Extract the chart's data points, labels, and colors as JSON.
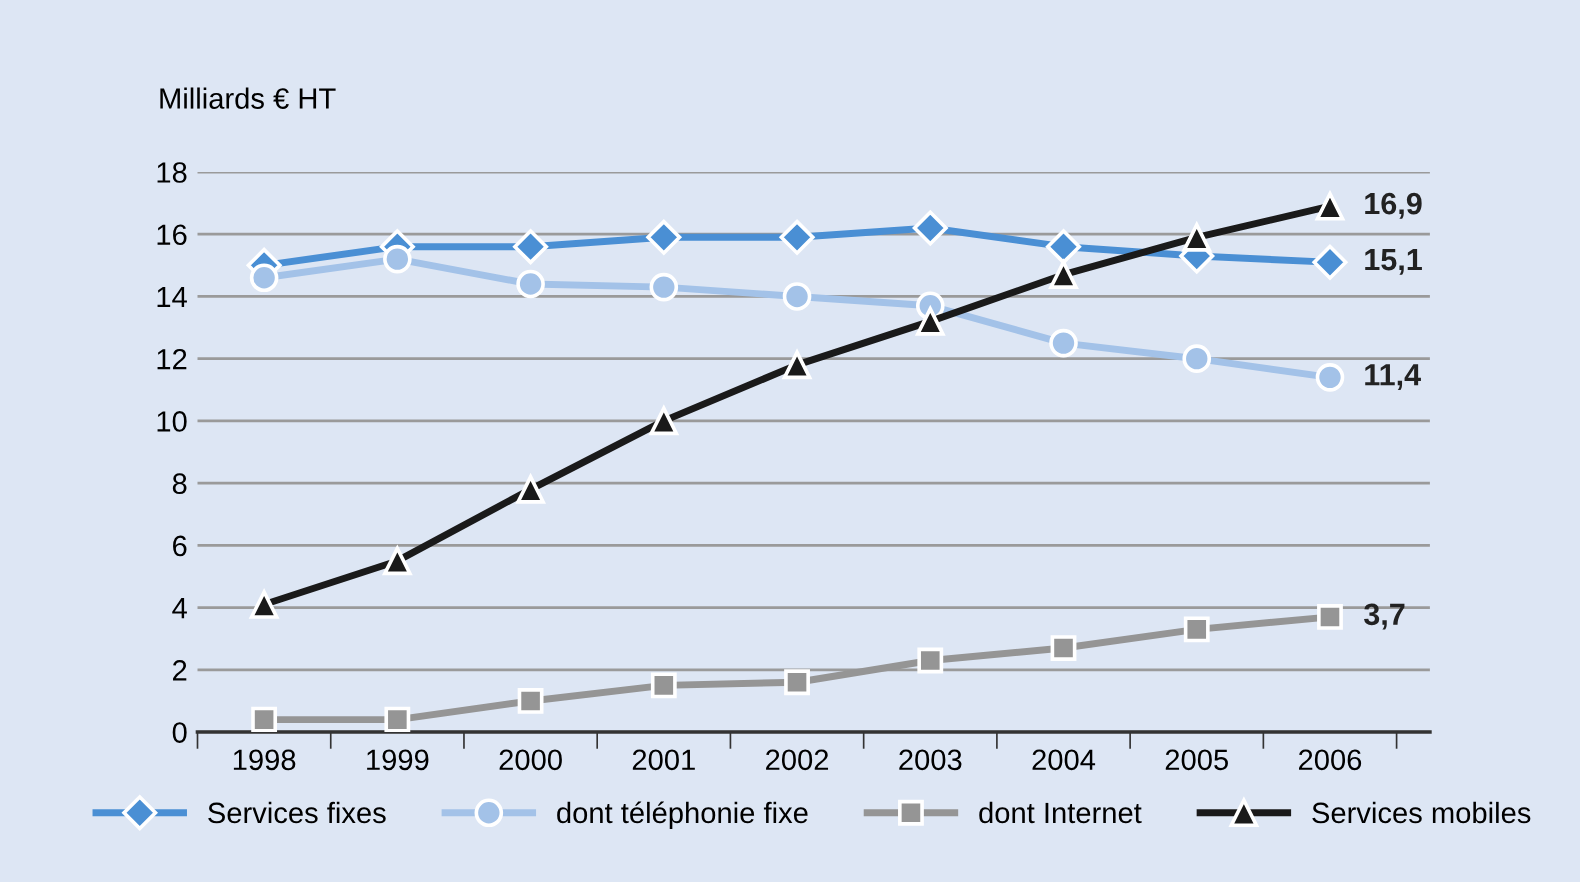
{
  "chart_data": {
    "type": "line",
    "ylabel": "Milliards € HT",
    "categories": [
      "1998",
      "1999",
      "2000",
      "2001",
      "2002",
      "2003",
      "2004",
      "2005",
      "2006"
    ],
    "series": [
      {
        "name": "Services fixes",
        "color": "#4a8fd4",
        "marker": "diamond",
        "values": [
          15.0,
          15.6,
          15.6,
          15.9,
          15.9,
          16.2,
          15.6,
          15.3,
          15.1
        ],
        "value_labels": [
          null,
          null,
          null,
          null,
          null,
          null,
          null,
          null,
          "15,1"
        ]
      },
      {
        "name": "dont téléphonie fixe",
        "color": "#a3c2e8",
        "marker": "circle",
        "values": [
          14.6,
          15.2,
          14.4,
          14.3,
          14.0,
          13.7,
          12.5,
          12.0,
          11.4
        ],
        "value_labels": [
          null,
          null,
          null,
          null,
          null,
          null,
          null,
          null,
          "11,4"
        ]
      },
      {
        "name": "dont Internet",
        "color": "#959595",
        "marker": "square",
        "values": [
          0.4,
          0.4,
          1.0,
          1.5,
          1.6,
          2.3,
          2.7,
          3.3,
          3.7
        ],
        "value_labels": [
          null,
          null,
          null,
          null,
          null,
          null,
          null,
          null,
          "3,7"
        ]
      },
      {
        "name": "Services mobiles",
        "color": "#1a1a1a",
        "marker": "triangle",
        "values": [
          4.1,
          5.5,
          7.8,
          10.0,
          11.8,
          13.2,
          14.7,
          15.9,
          16.9
        ],
        "value_labels": [
          null,
          null,
          null,
          null,
          null,
          null,
          null,
          null,
          "16,9"
        ]
      }
    ],
    "ylim": [
      0,
      18
    ],
    "yticks": [
      0,
      2,
      4,
      6,
      8,
      10,
      12,
      14,
      16,
      18
    ],
    "grid": "y",
    "legend": "bottom",
    "line_style": "solid"
  }
}
